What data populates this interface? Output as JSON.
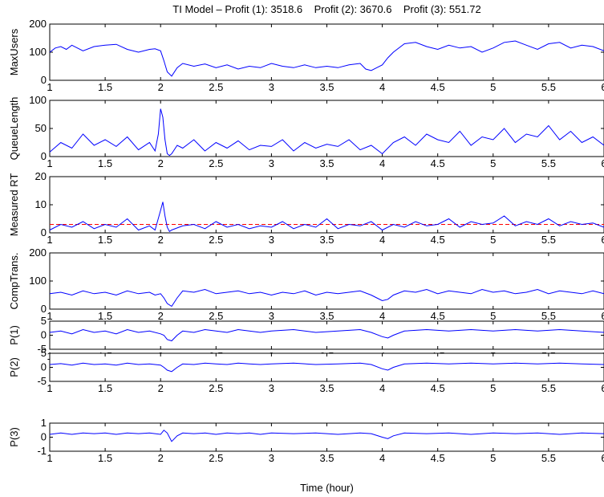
{
  "figure": {
    "title": "TI Model – Profit (1): 3518.6    Profit (2): 3670.6    Profit (3): 551.72",
    "xlabel": "Time (hour)"
  },
  "colors": {
    "series": "#0000ff",
    "threshold": "#ff0000",
    "axes": "#000000"
  },
  "chart_data": [
    {
      "type": "line",
      "ylabel": "MaxUsers",
      "ylim": [
        0,
        200
      ],
      "yticks": [
        0,
        100,
        200
      ],
      "xlim": [
        1,
        6
      ],
      "xticks": [
        1,
        1.5,
        2,
        2.5,
        3,
        3.5,
        4,
        4.5,
        5,
        5.5,
        6
      ],
      "xtick_labels": [
        "1",
        "1.5",
        "2",
        "2.5",
        "3",
        "3.5",
        "4",
        "4.5",
        "5",
        "5.5",
        "6"
      ],
      "series": [
        {
          "x": [
            1,
            1.05,
            1.1,
            1.15,
            1.2,
            1.3,
            1.4,
            1.5,
            1.6,
            1.7,
            1.8,
            1.9,
            1.95,
            2,
            2.03,
            2.06,
            2.1,
            2.15,
            2.2,
            2.3,
            2.4,
            2.5,
            2.6,
            2.7,
            2.8,
            2.9,
            3,
            3.1,
            3.2,
            3.3,
            3.4,
            3.5,
            3.6,
            3.7,
            3.8,
            3.85,
            3.9,
            3.95,
            4,
            4.05,
            4.1,
            4.2,
            4.3,
            4.4,
            4.5,
            4.6,
            4.7,
            4.8,
            4.9,
            5,
            5.1,
            5.2,
            5.3,
            5.4,
            5.5,
            5.6,
            5.7,
            5.8,
            5.9,
            6
          ],
          "y": [
            100,
            115,
            120,
            110,
            125,
            105,
            120,
            125,
            128,
            110,
            100,
            110,
            112,
            105,
            70,
            30,
            15,
            45,
            60,
            50,
            58,
            45,
            55,
            40,
            50,
            45,
            60,
            50,
            45,
            55,
            45,
            50,
            45,
            55,
            60,
            40,
            35,
            45,
            55,
            80,
            100,
            130,
            135,
            120,
            110,
            125,
            115,
            120,
            100,
            115,
            135,
            140,
            125,
            110,
            130,
            135,
            115,
            125,
            120,
            105
          ]
        }
      ]
    },
    {
      "type": "line",
      "ylabel": "QueueLength",
      "ylim": [
        0,
        100
      ],
      "yticks": [
        0,
        50,
        100
      ],
      "xlim": [
        1,
        6
      ],
      "xticks": [
        1,
        1.5,
        2,
        2.5,
        3,
        3.5,
        4,
        4.5,
        5,
        5.5,
        6
      ],
      "xtick_labels": [
        "1",
        "1.5",
        "2",
        "2.5",
        "3",
        "3.5",
        "4",
        "4.5",
        "5",
        "5.5",
        "6"
      ],
      "series": [
        {
          "x": [
            1,
            1.1,
            1.2,
            1.3,
            1.4,
            1.5,
            1.6,
            1.7,
            1.8,
            1.9,
            1.95,
            1.98,
            2,
            2.02,
            2.04,
            2.06,
            2.08,
            2.1,
            2.15,
            2.2,
            2.3,
            2.4,
            2.5,
            2.6,
            2.7,
            2.8,
            2.9,
            3,
            3.1,
            3.2,
            3.3,
            3.4,
            3.5,
            3.6,
            3.7,
            3.8,
            3.9,
            4,
            4.1,
            4.2,
            4.3,
            4.4,
            4.5,
            4.6,
            4.7,
            4.8,
            4.9,
            5,
            5.1,
            5.2,
            5.3,
            5.4,
            5.5,
            5.6,
            5.7,
            5.8,
            5.9,
            6
          ],
          "y": [
            8,
            25,
            15,
            40,
            20,
            30,
            18,
            35,
            12,
            25,
            10,
            40,
            85,
            70,
            30,
            5,
            2,
            5,
            20,
            15,
            30,
            10,
            25,
            15,
            28,
            12,
            20,
            18,
            30,
            10,
            25,
            15,
            22,
            18,
            30,
            12,
            20,
            5,
            25,
            35,
            20,
            40,
            30,
            25,
            45,
            20,
            35,
            30,
            50,
            25,
            40,
            35,
            55,
            30,
            45,
            25,
            35,
            20
          ]
        }
      ]
    },
    {
      "type": "line",
      "ylabel": "Measured RT",
      "ylim": [
        0,
        20
      ],
      "yticks": [
        0,
        10,
        20
      ],
      "xlim": [
        1,
        6
      ],
      "xticks": [
        1,
        1.5,
        2,
        2.5,
        3,
        3.5,
        4,
        4.5,
        5,
        5.5,
        6
      ],
      "xtick_labels": [
        "1",
        "1.5",
        "2",
        "2.5",
        "3",
        "3.5",
        "4",
        "4.5",
        "5",
        "5.5",
        "6"
      ],
      "threshold": 3,
      "series": [
        {
          "x": [
            1,
            1.1,
            1.2,
            1.3,
            1.4,
            1.5,
            1.6,
            1.7,
            1.8,
            1.9,
            1.95,
            2,
            2.02,
            2.04,
            2.06,
            2.08,
            2.1,
            2.2,
            2.3,
            2.4,
            2.5,
            2.6,
            2.7,
            2.8,
            2.9,
            3,
            3.1,
            3.2,
            3.3,
            3.4,
            3.5,
            3.6,
            3.7,
            3.8,
            3.9,
            4,
            4.1,
            4.2,
            4.3,
            4.4,
            4.5,
            4.6,
            4.7,
            4.8,
            4.9,
            5,
            5.1,
            5.2,
            5.3,
            5.4,
            5.5,
            5.6,
            5.7,
            5.8,
            5.9,
            6
          ],
          "y": [
            1,
            3,
            2,
            4,
            1.5,
            3,
            2,
            5,
            1,
            2.5,
            1,
            8,
            11,
            6,
            2,
            0.5,
            1,
            2.5,
            3,
            1.5,
            4,
            2,
            3,
            1.5,
            2.5,
            2,
            4,
            1.5,
            3,
            2,
            5,
            1.5,
            3,
            2.5,
            4,
            1,
            3,
            2,
            4,
            2.5,
            3,
            5,
            2,
            4,
            3,
            3.5,
            6,
            2.5,
            4,
            3,
            5,
            2.5,
            4,
            3,
            3.5,
            2
          ]
        }
      ]
    },
    {
      "type": "line",
      "ylabel": "CompTrans.",
      "ylim": [
        0,
        200
      ],
      "yticks": [
        0,
        100,
        200
      ],
      "xlim": [
        1,
        6
      ],
      "xticks": [
        1,
        1.5,
        2,
        2.5,
        3,
        3.5,
        4,
        4.5,
        5,
        5.5,
        6
      ],
      "xtick_labels": [
        "1",
        "1.5",
        "2",
        "2.5",
        "3",
        "3.5",
        "4",
        "4.5",
        "5",
        "5.5",
        "6"
      ],
      "series": [
        {
          "x": [
            1,
            1.1,
            1.2,
            1.3,
            1.4,
            1.5,
            1.6,
            1.7,
            1.8,
            1.9,
            1.95,
            2,
            2.03,
            2.06,
            2.1,
            2.15,
            2.2,
            2.3,
            2.4,
            2.5,
            2.6,
            2.7,
            2.8,
            2.9,
            3,
            3.1,
            3.2,
            3.3,
            3.4,
            3.5,
            3.6,
            3.7,
            3.8,
            3.9,
            3.95,
            4,
            4.05,
            4.1,
            4.2,
            4.3,
            4.4,
            4.5,
            4.6,
            4.7,
            4.8,
            4.9,
            5,
            5.1,
            5.2,
            5.3,
            5.4,
            5.5,
            5.6,
            5.7,
            5.8,
            5.9,
            6
          ],
          "y": [
            55,
            60,
            50,
            65,
            55,
            60,
            50,
            65,
            55,
            60,
            50,
            55,
            40,
            20,
            10,
            40,
            65,
            60,
            70,
            55,
            60,
            65,
            55,
            60,
            50,
            60,
            55,
            65,
            50,
            60,
            55,
            60,
            65,
            50,
            40,
            30,
            35,
            50,
            65,
            60,
            70,
            55,
            65,
            60,
            55,
            70,
            60,
            65,
            55,
            60,
            70,
            55,
            65,
            60,
            55,
            65,
            55
          ]
        }
      ]
    },
    {
      "type": "line",
      "ylabel": "P(1)",
      "ylim": [
        -5,
        5
      ],
      "yticks": [
        -5,
        0,
        5
      ],
      "xlim": [
        1,
        6
      ],
      "xticks": [
        1,
        1.5,
        2,
        2.5,
        3,
        3.5,
        4,
        4.5,
        5,
        5.5,
        6
      ],
      "xtick_labels": [
        "1",
        "1.5",
        "2",
        "2.5",
        "3",
        "3.5",
        "4",
        "4.5",
        "5",
        "5.5",
        "6"
      ],
      "series": [
        {
          "x": [
            1,
            1.1,
            1.2,
            1.3,
            1.4,
            1.5,
            1.6,
            1.7,
            1.8,
            1.9,
            2,
            2.03,
            2.06,
            2.1,
            2.15,
            2.2,
            2.3,
            2.4,
            2.5,
            2.6,
            2.7,
            2.8,
            2.9,
            3,
            3.2,
            3.4,
            3.6,
            3.8,
            3.9,
            4,
            4.05,
            4.1,
            4.2,
            4.4,
            4.6,
            4.8,
            5,
            5.2,
            5.4,
            5.6,
            5.8,
            6
          ],
          "y": [
            1,
            1.5,
            0.5,
            2,
            1,
            1.5,
            0.5,
            2,
            1,
            1.5,
            0.5,
            0,
            -1.5,
            -2,
            0,
            1.5,
            1,
            2,
            1.5,
            1,
            2,
            1.5,
            1,
            1.5,
            2,
            1,
            1.5,
            2,
            1,
            -0.5,
            -1,
            0,
            1.5,
            2,
            1.5,
            2,
            1.5,
            2,
            1.5,
            2,
            1.5,
            1
          ]
        }
      ]
    },
    {
      "type": "line",
      "ylabel": "P(2)",
      "ylim": [
        -5,
        5
      ],
      "yticks": [
        -5,
        0,
        5
      ],
      "xlim": [
        1,
        6
      ],
      "xticks": [
        1,
        1.5,
        2,
        2.5,
        3,
        3.5,
        4,
        4.5,
        5,
        5.5,
        6
      ],
      "xtick_labels": [
        "1",
        "1.5",
        "2",
        "2.5",
        "3",
        "3.5",
        "4",
        "4.5",
        "5",
        "5.5",
        "6"
      ],
      "series": [
        {
          "x": [
            1,
            1.1,
            1.2,
            1.3,
            1.4,
            1.5,
            1.6,
            1.7,
            1.8,
            1.9,
            2,
            2.03,
            2.06,
            2.1,
            2.15,
            2.2,
            2.3,
            2.4,
            2.5,
            2.6,
            2.7,
            2.8,
            2.9,
            3,
            3.2,
            3.4,
            3.6,
            3.8,
            3.9,
            4,
            4.05,
            4.1,
            4.2,
            4.4,
            4.6,
            4.8,
            5,
            5.2,
            5.4,
            5.6,
            5.8,
            6
          ],
          "y": [
            1,
            1.3,
            0.8,
            1.5,
            1,
            1.2,
            0.8,
            1.5,
            1,
            1.2,
            0.8,
            0,
            -1,
            -1.5,
            0,
            1.2,
            1,
            1.5,
            1.2,
            1,
            1.5,
            1.2,
            1,
            1.2,
            1.5,
            1,
            1.2,
            1.5,
            1,
            -0.5,
            -1,
            0,
            1.2,
            1.5,
            1.2,
            1.5,
            1.2,
            1.5,
            1.2,
            1.5,
            1.2,
            1
          ]
        }
      ]
    },
    {
      "type": "line",
      "ylabel": "P(3)",
      "ylim": [
        -1,
        1
      ],
      "yticks": [
        -1,
        0,
        1
      ],
      "xlim": [
        1,
        6
      ],
      "xticks": [
        1,
        1.5,
        2,
        2.5,
        3,
        3.5,
        4,
        4.5,
        5,
        5.5,
        6
      ],
      "xtick_labels": [
        "1",
        "1.5",
        "2",
        "2.5",
        "3",
        "3.5",
        "4",
        "4.5",
        "5",
        "5.5",
        "6"
      ],
      "series": [
        {
          "x": [
            1,
            1.1,
            1.2,
            1.3,
            1.4,
            1.5,
            1.6,
            1.7,
            1.8,
            1.9,
            2,
            2.03,
            2.06,
            2.1,
            2.15,
            2.2,
            2.3,
            2.4,
            2.5,
            2.6,
            2.7,
            2.8,
            2.9,
            3,
            3.2,
            3.4,
            3.6,
            3.8,
            3.9,
            4,
            4.05,
            4.1,
            4.2,
            4.4,
            4.6,
            4.8,
            5,
            5.2,
            5.4,
            5.6,
            5.8,
            6
          ],
          "y": [
            0.2,
            0.3,
            0.2,
            0.3,
            0.25,
            0.3,
            0.2,
            0.3,
            0.25,
            0.3,
            0.2,
            0.5,
            0.3,
            -0.3,
            0.1,
            0.3,
            0.25,
            0.3,
            0.2,
            0.3,
            0.25,
            0.3,
            0.2,
            0.3,
            0.25,
            0.3,
            0.2,
            0.3,
            0.25,
            0,
            -0.1,
            0.1,
            0.3,
            0.25,
            0.3,
            0.2,
            0.3,
            0.25,
            0.3,
            0.2,
            0.3,
            0.25
          ]
        }
      ]
    }
  ]
}
